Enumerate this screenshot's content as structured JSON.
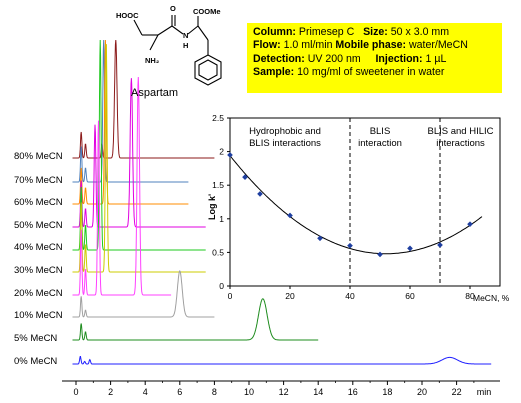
{
  "molecule": {
    "name": "Aspartam",
    "groups": {
      "acid": "HOOC",
      "ester": "COOMe",
      "amine": "NH₂",
      "amide_n": "N",
      "amide_h": "H",
      "carbonyl_o": "O"
    }
  },
  "conditions": [
    {
      "k1": "Column:",
      "v1": " Primesep C",
      "k2": "Size:",
      "v2": " 50 x 3.0 mm"
    },
    {
      "k1": "Flow:",
      "v1": " 1.0 ml/min",
      "k2": "Mobile phase:",
      "v2": " water/MeCN"
    },
    {
      "k1": "Detection:",
      "v1": " UV 200 nm",
      "k2": "Injection:",
      "v2": " 1 µL"
    },
    {
      "k1": "Sample:",
      "v1": " 10 mg/ml of sweetener in water",
      "k2": "",
      "v2": ""
    }
  ],
  "colors": {
    "0": "#1f1fff",
    "5": "#1e8c1e",
    "10": "#a0a0a0",
    "20": "#ff40ff",
    "30": "#cccc00",
    "40": "#1ec81e",
    "50": "#e000e0",
    "60": "#ff8c00",
    "70": "#4f81bd",
    "80": "#8b1a1a",
    "fit": "#000000",
    "points": "#1f3fa0"
  },
  "chart_data": [
    {
      "type": "line",
      "name": "chromatograms",
      "xlabel": "min",
      "x_ticks": [
        0,
        2,
        4,
        6,
        8,
        10,
        12,
        14,
        16,
        18,
        20,
        22
      ],
      "xlim": [
        -0.3,
        24.5
      ],
      "traces": [
        {
          "label": "80% MeCN",
          "mecn": 80,
          "x_end": 8.0,
          "peaks": [
            [
              0.3,
              0.22,
              0.04
            ],
            [
              0.55,
              0.12,
              0.04
            ],
            [
              1.5,
              0.12,
              0.04
            ],
            [
              2.3,
              1.0,
              0.07
            ]
          ]
        },
        {
          "label": "70% MeCN",
          "mecn": 70,
          "x_end": 6.5,
          "peaks": [
            [
              0.3,
              0.25,
              0.04
            ],
            [
              0.55,
              0.1,
              0.04
            ],
            [
              1.6,
              1.0,
              0.05
            ]
          ]
        },
        {
          "label": "60% MeCN",
          "mecn": 60,
          "x_end": 6.5,
          "peaks": [
            [
              0.3,
              0.22,
              0.04
            ],
            [
              0.55,
              0.1,
              0.04
            ],
            [
              1.7,
              1.0,
              0.05
            ]
          ]
        },
        {
          "label": "50% MeCN",
          "mecn": 50,
          "x_end": 7.5,
          "peaks": [
            [
              0.3,
              0.25,
              0.04
            ],
            [
              0.55,
              0.1,
              0.04
            ],
            [
              1.1,
              0.55,
              0.05
            ],
            [
              3.2,
              0.8,
              0.07
            ]
          ]
        },
        {
          "label": "40% MeCN",
          "mecn": 40,
          "x_end": 7.5,
          "peaks": [
            [
              0.3,
              0.3,
              0.04
            ],
            [
              0.55,
              0.12,
              0.04
            ],
            [
              1.4,
              1.0,
              0.05
            ]
          ]
        },
        {
          "label": "30% MeCN",
          "mecn": 30,
          "x_end": 7.5,
          "peaks": [
            [
              0.3,
              0.3,
              0.04
            ],
            [
              0.55,
              0.12,
              0.04
            ],
            [
              1.75,
              1.0,
              0.05
            ]
          ]
        },
        {
          "label": "20% MeCN",
          "mecn": 20,
          "x_end": 5.5,
          "peaks": [
            [
              0.3,
              0.3,
              0.04
            ],
            [
              0.55,
              0.12,
              0.04
            ],
            [
              1.3,
              0.8,
              0.05
            ],
            [
              3.6,
              1.0,
              0.07
            ]
          ]
        },
        {
          "label": "10% MeCN",
          "mecn": 10,
          "x_end": 8.0,
          "peaks": [
            [
              0.3,
              0.45,
              0.04
            ],
            [
              0.55,
              0.15,
              0.04
            ],
            [
              6.0,
              1.0,
              0.14
            ]
          ]
        },
        {
          "label": "5% MeCN",
          "mecn": 5,
          "x_end": 14.0,
          "peaks": [
            [
              0.3,
              0.3,
              0.04
            ],
            [
              0.55,
              0.15,
              0.04
            ],
            [
              10.8,
              0.75,
              0.25
            ]
          ]
        },
        {
          "label": "0% MeCN",
          "mecn": 0,
          "x_end": 24.0,
          "peaks": [
            [
              0.25,
              0.35,
              0.04
            ],
            [
              0.5,
              0.12,
              0.04
            ],
            [
              0.8,
              0.2,
              0.04
            ],
            [
              21.6,
              0.3,
              0.45
            ]
          ]
        }
      ]
    },
    {
      "type": "scatter",
      "name": "log-k-vs-mecn",
      "xlabel": "MeCN, %",
      "ylabel": "Log k'",
      "xlim": [
        0,
        90
      ],
      "ylim": [
        0,
        2.5
      ],
      "x_ticks": [
        0,
        20,
        40,
        60,
        80
      ],
      "y_ticks": [
        0,
        0.5,
        1,
        1.5,
        2,
        2.5
      ],
      "grid": false,
      "points": [
        {
          "x": 0,
          "y": 1.95
        },
        {
          "x": 5,
          "y": 1.62
        },
        {
          "x": 10,
          "y": 1.37
        },
        {
          "x": 20,
          "y": 1.05
        },
        {
          "x": 30,
          "y": 0.71
        },
        {
          "x": 40,
          "y": 0.6
        },
        {
          "x": 50,
          "y": 0.47
        },
        {
          "x": 60,
          "y": 0.56
        },
        {
          "x": 70,
          "y": 0.61
        },
        {
          "x": 80,
          "y": 0.92
        }
      ],
      "fit_curve": {
        "vertex_x": 52,
        "vertex_y": 0.48,
        "a": 0.00054,
        "x_range": [
          0,
          84
        ]
      },
      "dividers": [
        40,
        70
      ],
      "regions": [
        {
          "lines": [
            "Hydrophobic and",
            "BLIS interactions"
          ],
          "x_center": 20
        },
        {
          "lines": [
            "BLIS",
            "interaction"
          ],
          "x_center": 55
        },
        {
          "lines": [
            "BLIS and HILIC",
            "interactions"
          ],
          "x_center": 80
        }
      ]
    }
  ]
}
